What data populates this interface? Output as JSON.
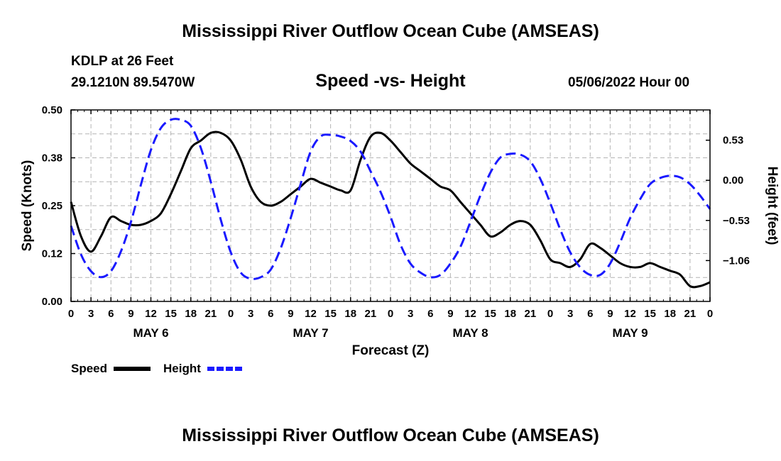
{
  "page": {
    "title": "Mississippi River Outflow Ocean Cube (AMSEAS)",
    "footer_title": "Mississippi River Outflow Ocean Cube (AMSEAS)",
    "station": "KDLP at 26 Feet",
    "coords": "29.1210N  89.5470W",
    "subtitle": "Speed -vs- Height",
    "date": "05/06/2022 Hour 00"
  },
  "chart_data": {
    "type": "line",
    "title": "Speed -vs- Height",
    "xlabel": "Forecast (Z)",
    "ylabel": "Speed (Knots)",
    "y2label": "Height (feet)",
    "x_unit": "hours since 05/06/2022 00Z",
    "xlim": [
      0,
      96
    ],
    "ylim": [
      0,
      0.5
    ],
    "y2lim": [
      -1.6,
      0.93
    ],
    "x_ticks": [
      0,
      3,
      6,
      9,
      12,
      15,
      18,
      21,
      24,
      27,
      30,
      33,
      36,
      39,
      42,
      45,
      48,
      51,
      54,
      57,
      60,
      63,
      66,
      69,
      72,
      75,
      78,
      81,
      84,
      87,
      90,
      93,
      96
    ],
    "x_tick_labels": [
      "0",
      "3",
      "6",
      "9",
      "12",
      "15",
      "18",
      "21",
      "0",
      "3",
      "6",
      "9",
      "12",
      "15",
      "18",
      "21",
      "0",
      "3",
      "6",
      "9",
      "12",
      "15",
      "18",
      "21",
      "0",
      "3",
      "6",
      "9",
      "12",
      "15",
      "18",
      "21",
      "0"
    ],
    "day_labels": [
      {
        "label": "MAY 6",
        "x": 12
      },
      {
        "label": "MAY 7",
        "x": 36
      },
      {
        "label": "MAY 8",
        "x": 60
      },
      {
        "label": "MAY 9",
        "x": 84
      }
    ],
    "y_ticks": [
      0,
      0.125,
      0.25,
      0.375,
      0.5
    ],
    "y_tick_labels": [
      "0.00",
      "0.12",
      "0.25",
      "0.38",
      "0.50"
    ],
    "y2_ticks": [
      -1.06,
      -0.53,
      0.0,
      0.53
    ],
    "y2_tick_labels": [
      "−1.06",
      "−0.53",
      "0.00",
      "0.53"
    ],
    "grid": true,
    "series": [
      {
        "name": "Speed",
        "axis": "left",
        "color": "#000000",
        "dash": "solid",
        "x": [
          0,
          1.5,
          3,
          4.5,
          6,
          7.5,
          9,
          10.5,
          12,
          13.5,
          15,
          16.5,
          18,
          19.5,
          21,
          22.5,
          24,
          25.5,
          27,
          28.5,
          30,
          31.5,
          33,
          34.5,
          36,
          37.5,
          39,
          40.5,
          42,
          43.5,
          45,
          46.5,
          48,
          49.5,
          51,
          52.5,
          54,
          55.5,
          57,
          58.5,
          60,
          61.5,
          63,
          64.5,
          66,
          67.5,
          69,
          70.5,
          72,
          73.5,
          75,
          76.5,
          78,
          79.5,
          81,
          82.5,
          84,
          85.5,
          87,
          88.5,
          90,
          91.5,
          93,
          94.5,
          96
        ],
        "values": [
          0.26,
          0.17,
          0.13,
          0.17,
          0.22,
          0.21,
          0.2,
          0.2,
          0.21,
          0.23,
          0.28,
          0.34,
          0.4,
          0.42,
          0.44,
          0.44,
          0.42,
          0.37,
          0.3,
          0.26,
          0.25,
          0.26,
          0.28,
          0.3,
          0.32,
          0.31,
          0.3,
          0.29,
          0.29,
          0.37,
          0.43,
          0.44,
          0.42,
          0.39,
          0.36,
          0.34,
          0.32,
          0.3,
          0.29,
          0.26,
          0.23,
          0.2,
          0.17,
          0.18,
          0.2,
          0.21,
          0.2,
          0.16,
          0.11,
          0.1,
          0.09,
          0.11,
          0.15,
          0.14,
          0.12,
          0.1,
          0.09,
          0.09,
          0.1,
          0.09,
          0.08,
          0.07,
          0.04,
          0.04,
          0.05
        ]
      },
      {
        "name": "Height",
        "axis": "right",
        "color": "#1a1aff",
        "dash": "dashed",
        "x": [
          0,
          1.5,
          3,
          4.5,
          6,
          7.5,
          9,
          10.5,
          12,
          13.5,
          15,
          16.5,
          18,
          19.5,
          21,
          22.5,
          24,
          25.5,
          27,
          28.5,
          30,
          31.5,
          33,
          34.5,
          36,
          37.5,
          39,
          40.5,
          42,
          43.5,
          45,
          46.5,
          48,
          49.5,
          51,
          52.5,
          54,
          55.5,
          57,
          58.5,
          60,
          61.5,
          63,
          64.5,
          66,
          67.5,
          69,
          70.5,
          72,
          73.5,
          75,
          76.5,
          78,
          79.5,
          81,
          82.5,
          84,
          85.5,
          87,
          88.5,
          90,
          91.5,
          93,
          94.5,
          96
        ],
        "values": [
          -0.6,
          -0.98,
          -1.2,
          -1.28,
          -1.2,
          -0.94,
          -0.55,
          -0.06,
          0.4,
          0.69,
          0.8,
          0.8,
          0.72,
          0.43,
          -0.02,
          -0.52,
          -0.95,
          -1.22,
          -1.3,
          -1.28,
          -1.18,
          -0.9,
          -0.5,
          -0.05,
          0.38,
          0.58,
          0.6,
          0.58,
          0.52,
          0.38,
          0.12,
          -0.15,
          -0.48,
          -0.85,
          -1.1,
          -1.22,
          -1.28,
          -1.25,
          -1.1,
          -0.88,
          -0.55,
          -0.2,
          0.1,
          0.3,
          0.35,
          0.34,
          0.25,
          0.02,
          -0.3,
          -0.65,
          -0.95,
          -1.15,
          -1.25,
          -1.25,
          -1.1,
          -0.82,
          -0.5,
          -0.25,
          -0.05,
          0.03,
          0.06,
          0.04,
          -0.05,
          -0.2,
          -0.38
        ]
      }
    ],
    "legend": [
      {
        "label": "Speed",
        "color": "#000000",
        "dash": "solid"
      },
      {
        "label": "Height",
        "color": "#1a1aff",
        "dash": "dashed"
      }
    ],
    "legend_position": "bottom-left"
  }
}
